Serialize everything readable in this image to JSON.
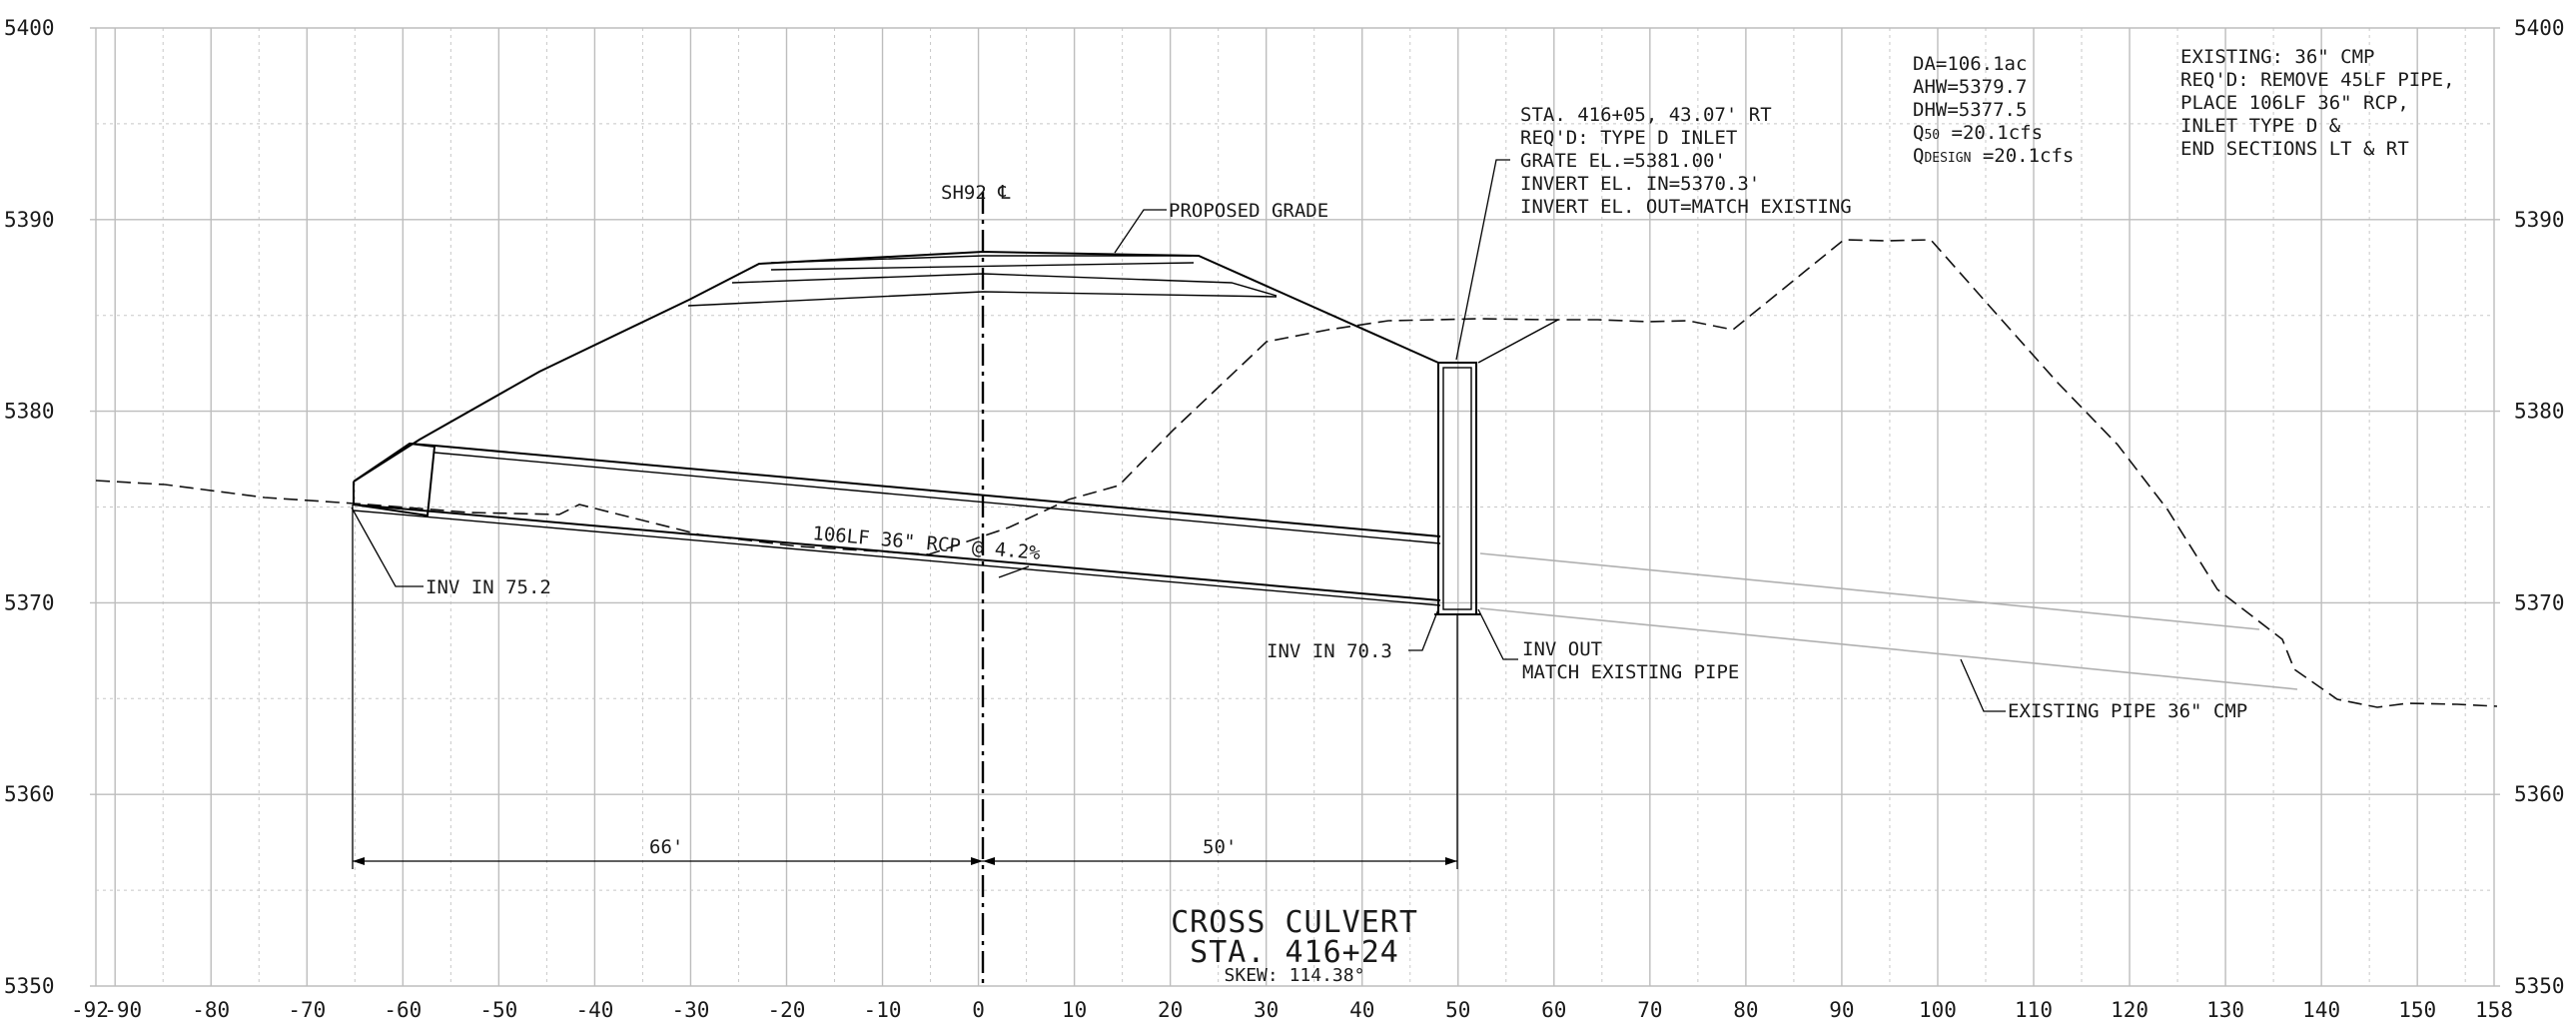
{
  "axes": {
    "x_range": [
      -92,
      158
    ],
    "y_range": [
      5350,
      5400
    ],
    "x_ticks": [
      "-92",
      "-90",
      "-80",
      "-70",
      "-60",
      "-50",
      "-40",
      "-30",
      "-20",
      "-10",
      "0",
      "10",
      "20",
      "30",
      "40",
      "50",
      "60",
      "70",
      "80",
      "90",
      "100",
      "110",
      "120",
      "130",
      "140",
      "150",
      "158"
    ],
    "y_ticks": [
      "5350",
      "5360",
      "5370",
      "5380",
      "5390",
      "5400"
    ]
  },
  "title": {
    "line1": "CROSS CULVERT",
    "line2": "STA. 416+24",
    "line3": "SKEW: 114.38°"
  },
  "centerline_label": "SH92 ℄",
  "proposed_grade_label": "PROPOSED GRADE",
  "pipe_label": "106LF 36\" RCP @ 4.2%",
  "inv_in_left": "INV IN 75.2",
  "inv_in_right": "INV IN 70.3",
  "inv_out": {
    "line1": "INV OUT",
    "line2": "MATCH EXISTING PIPE"
  },
  "existing_pipe_label": "EXISTING PIPE 36\" CMP",
  "dimensions": {
    "left": "66'",
    "right": "50'"
  },
  "inlet_note": [
    "STA. 416+05, 43.07' RT",
    "REQ'D: TYPE D INLET",
    "GRATE EL.=5381.00'",
    "INVERT EL. IN=5370.3'",
    "INVERT EL. OUT=MATCH EXISTING"
  ],
  "hydraulics": {
    "da": "DA=106.1ac",
    "ahw": "AHW=5379.7",
    "dhw": "DHW=5377.5",
    "q50_base": "Q",
    "q50_sub": "50",
    "q50_value": " =20.1cfs",
    "qdesign_base": "Q",
    "qdesign_sub": "DESIGN",
    "qdesign_value": "  =20.1cfs"
  },
  "existing_note": [
    "EXISTING: 36\" CMP",
    "REQ'D: REMOVE 45LF PIPE,",
    "PLACE 106LF 36\" RCP,",
    "INLET TYPE D &",
    "END SECTIONS LT & RT"
  ]
}
